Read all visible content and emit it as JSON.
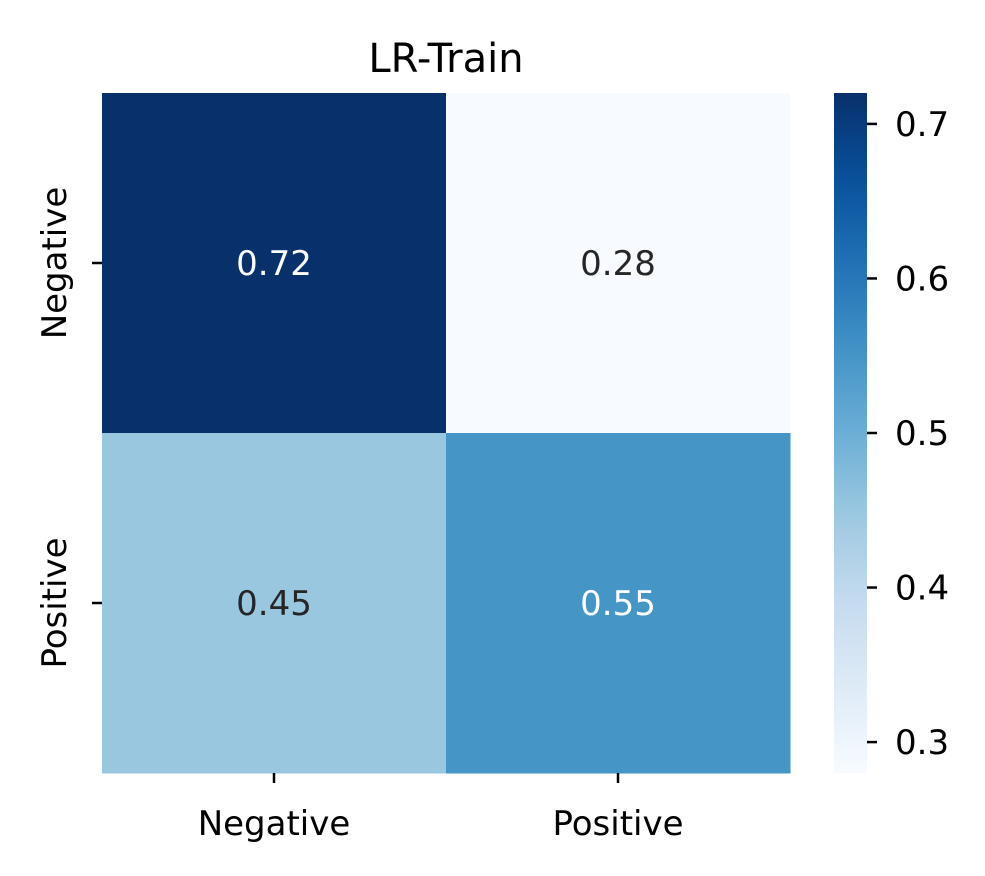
{
  "chart_data": {
    "type": "heatmap",
    "title": "LR-Train",
    "xlabel": "",
    "ylabel": "",
    "x_categories": [
      "Negative",
      "Positive"
    ],
    "y_categories": [
      "Negative",
      "Positive"
    ],
    "values": [
      [
        0.72,
        0.28
      ],
      [
        0.45,
        0.55
      ]
    ],
    "cell_labels": [
      [
        "0.72",
        "0.28"
      ],
      [
        "0.45",
        "0.55"
      ]
    ],
    "colormap": "Blues",
    "colorbar": {
      "range": [
        0.28,
        0.72
      ],
      "ticks": [
        0.3,
        0.4,
        0.5,
        0.6,
        0.7
      ],
      "tick_labels": [
        "0.3",
        "0.4",
        "0.5",
        "0.6",
        "0.7"
      ]
    },
    "grid": false
  },
  "colors": {
    "cmap_low": "#f7fbff",
    "cmap_high": "#08306b",
    "text_dark": "#262626",
    "text_light": "#ffffff",
    "axis": "#000000"
  }
}
